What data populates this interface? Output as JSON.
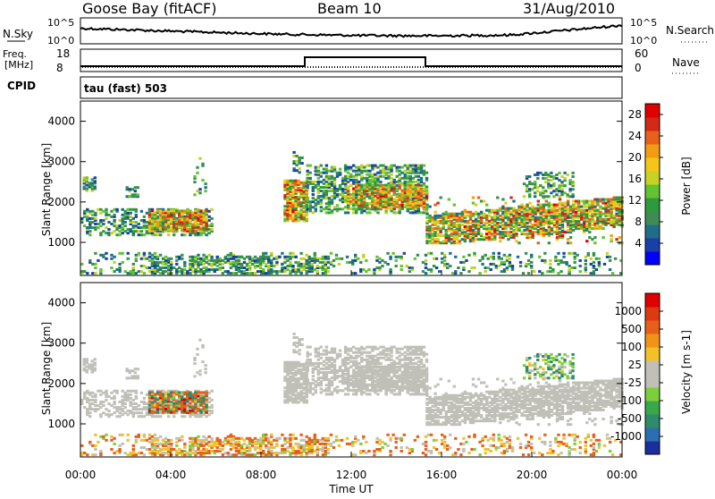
{
  "header": {
    "station": "Goose Bay (fitACF)",
    "beam": "Beam 10",
    "date": "31/Aug/2010"
  },
  "top_panels": {
    "nsky_label": "N.Sky",
    "nsky_ticks": [
      "10^5",
      "10^0"
    ],
    "nsearch_label": "N.Search",
    "nsearch_ticks": [
      "10^5",
      "10^0"
    ],
    "freq_label_1": "Freq.",
    "freq_label_2": "[MHz]",
    "freq_ticks": [
      "18",
      "8"
    ],
    "nave_label": "Nave",
    "nave_ticks": [
      "60",
      "0"
    ],
    "cpid_label": "CPID",
    "cpid_text": "tau (fast) 503"
  },
  "chart_data": [
    {
      "type": "heatmap",
      "panel": "power",
      "ylabel": "Slant Range [km]",
      "ylim": [
        180,
        4500
      ],
      "yticks": [
        "1000",
        "2000",
        "3000",
        "4000"
      ],
      "colorbar_label": "Power [dB]",
      "colorbar_ticks": [
        "4",
        "8",
        "12",
        "16",
        "20",
        "24",
        "28"
      ],
      "colorbar_range": [
        0,
        30
      ],
      "colorbar_colors": [
        "#0000ff",
        "#1a3fa8",
        "#1e6e8a",
        "#3d8c55",
        "#2e9a3e",
        "#63c232",
        "#c8d222",
        "#f5c61a",
        "#f39c12",
        "#e8601c",
        "#d22a16",
        "#e00000"
      ]
    },
    {
      "type": "heatmap",
      "panel": "velocity",
      "ylabel": "Slant Range [km]",
      "ylim": [
        180,
        4500
      ],
      "yticks": [
        "1000",
        "2000",
        "3000",
        "4000"
      ],
      "xlabel": "Time UT",
      "xticks": [
        "00:00",
        "04:00",
        "08:00",
        "12:00",
        "16:00",
        "20:00",
        "00:00"
      ],
      "xlim_hours": [
        0,
        24
      ],
      "colorbar_label": "Velocity [m s-1]",
      "colorbar_ticks": [
        "1000",
        "500",
        "100",
        "25",
        "-25",
        "-100",
        "-500",
        "-1000"
      ],
      "colorbar_colors": [
        "#1a2e9e",
        "#2c6fb0",
        "#2e8c6a",
        "#39a84a",
        "#7ccf3a",
        "#c0c0b8",
        "#c0c0b8",
        "#f2c12a",
        "#f09418",
        "#e6601a",
        "#de3a12",
        "#e00000"
      ]
    }
  ]
}
